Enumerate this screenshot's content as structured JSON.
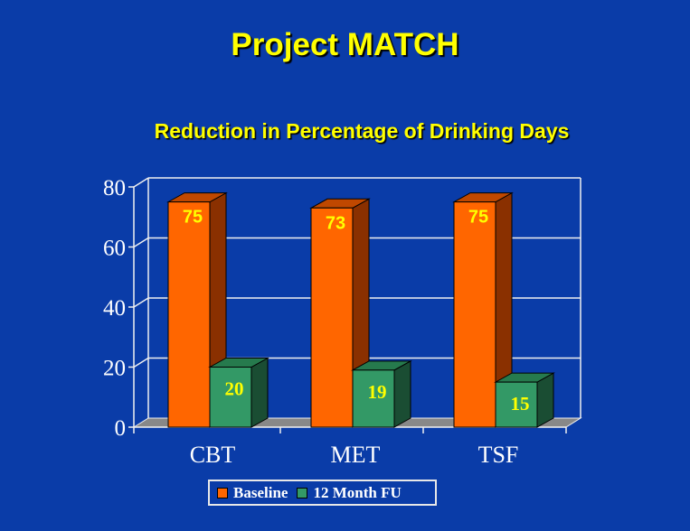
{
  "slide": {
    "title": "Project MATCH"
  },
  "chart_data": {
    "type": "bar",
    "title": "Reduction in Percentage of Drinking Days",
    "categories": [
      "CBT",
      "MET",
      "TSF"
    ],
    "series": [
      {
        "name": "Baseline",
        "values": [
          75,
          73,
          75
        ],
        "color": "#ff6600",
        "side_color": "#8a3000",
        "top_color": "#c04800"
      },
      {
        "name": "12 Month FU",
        "values": [
          20,
          19,
          15
        ],
        "color": "#339966",
        "side_color": "#1a4d33",
        "top_color": "#267a4d"
      }
    ],
    "ylim": [
      0,
      80
    ],
    "yticks": [
      0,
      20,
      40,
      60,
      80
    ],
    "xlabel": "",
    "ylabel": "",
    "grid": true,
    "legend_position": "bottom"
  }
}
